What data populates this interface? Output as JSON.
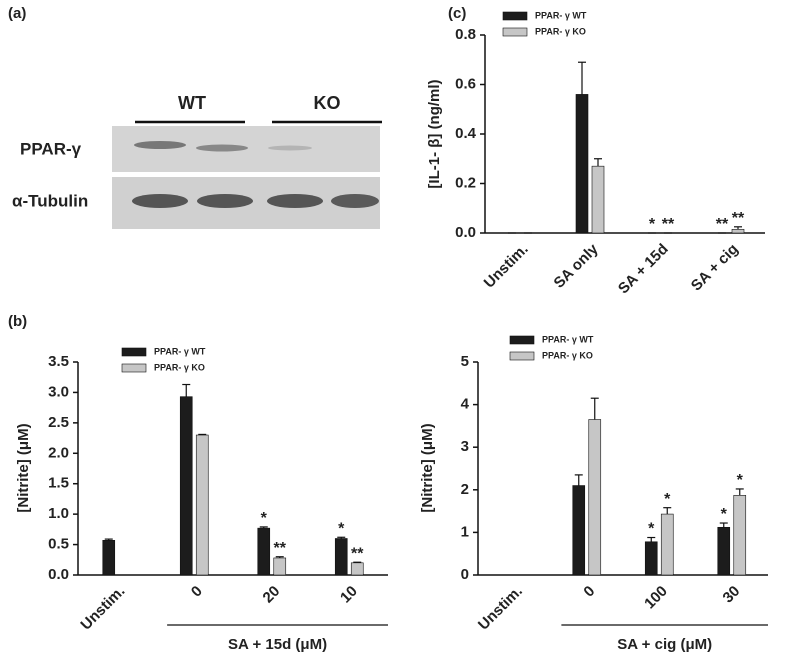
{
  "blot": {
    "panel": "(a)",
    "lanes": [
      "WT",
      "KO"
    ],
    "rows": [
      "PPAR-γ",
      "α-Tubulin"
    ]
  },
  "chart_data": [
    {
      "type": "bar",
      "panel": "(c)",
      "ylabel": "[IL-1- β] (ng/ml)",
      "categories": [
        "Unstim.",
        "SA only",
        "SA + 15d",
        "SA + cig"
      ],
      "series": [
        {
          "name": "PPAR- γ WT",
          "color": "#1c1c1c",
          "values": [
            0,
            0.56,
            0,
            0
          ],
          "errors": [
            0,
            0.13,
            0,
            0
          ],
          "annotations": [
            null,
            null,
            "*",
            "**"
          ]
        },
        {
          "name": "PPAR- γ KO",
          "color": "#c6c6c6",
          "values": [
            0,
            0.27,
            0,
            0.015
          ],
          "errors": [
            0,
            0.03,
            0,
            0.01
          ],
          "annotations": [
            null,
            null,
            "**",
            "**"
          ]
        }
      ],
      "ylim": [
        0,
        0.8
      ],
      "yticks": [
        {
          "value": 0,
          "label": "0.0"
        },
        0.2,
        0.4,
        0.6,
        0.8
      ]
    },
    {
      "type": "bar",
      "panel": "(b)",
      "ylabel": "[Nitrite] (μM)",
      "group_label": "SA + 15d (μM)",
      "categories": [
        "Unstim.",
        "0",
        "20",
        "10"
      ],
      "series": [
        {
          "name": "PPAR- γ WT",
          "color": "#1c1c1c",
          "values": [
            0.57,
            2.93,
            0.77,
            0.6
          ],
          "errors": [
            0.02,
            0.2,
            0.02,
            0.02
          ],
          "annotations": [
            null,
            null,
            "*",
            "*"
          ]
        },
        {
          "name": "PPAR- γ KO",
          "color": "#c6c6c6",
          "values": [
            null,
            2.3,
            0.28,
            0.2
          ],
          "errors": [
            null,
            0.01,
            0.02,
            0.01
          ],
          "annotations": [
            null,
            null,
            "**",
            "**"
          ]
        }
      ],
      "ylim": [
        0,
        3.5
      ],
      "yticks": [
        {
          "value": 0,
          "label": "0.0"
        },
        0.5,
        {
          "value": 1,
          "label": "1.0"
        },
        1.5,
        {
          "value": 2,
          "label": "2.0"
        },
        2.5,
        {
          "value": 3,
          "label": "3.0"
        },
        3.5
      ]
    },
    {
      "type": "bar",
      "ylabel": "[Nitrite] (μM)",
      "group_label": "SA + cig (μM)",
      "categories": [
        "Unstim.",
        "0",
        "100",
        "30"
      ],
      "series": [
        {
          "name": "PPAR- γ WT",
          "color": "#1c1c1c",
          "values": [
            null,
            2.1,
            0.78,
            1.12
          ],
          "errors": [
            null,
            0.25,
            0.1,
            0.1
          ],
          "annotations": [
            null,
            null,
            "*",
            "*"
          ]
        },
        {
          "name": "PPAR- γ KO",
          "color": "#c6c6c6",
          "values": [
            null,
            3.65,
            1.43,
            1.87
          ],
          "errors": [
            null,
            0.5,
            0.15,
            0.15
          ],
          "annotations": [
            null,
            null,
            "*",
            "*"
          ]
        }
      ],
      "ylim": [
        0,
        5
      ],
      "yticks": [
        0,
        1,
        2,
        3,
        4,
        5
      ]
    }
  ]
}
